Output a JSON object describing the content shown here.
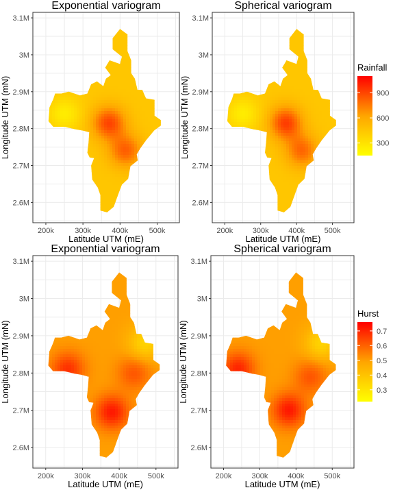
{
  "chart_data": [
    {
      "type": "heatmap",
      "title": "Exponential variogram",
      "xlabel": "Latitude UTM (mE)",
      "ylabel": "Longitude UTM (mN)",
      "x_ticks": [
        "200k",
        "300k",
        "400k",
        "500k"
      ],
      "y_ticks": [
        "2.6M",
        "2.7M",
        "2.8M",
        "2.9M",
        "3M",
        "3.1M"
      ],
      "xlim": [
        165000,
        560000
      ],
      "ylim": [
        2545000,
        3115000
      ],
      "variable": "Rainfall",
      "hotspots": [
        {
          "x": 370000,
          "y": 2815000,
          "value": 900
        },
        {
          "x": 415000,
          "y": 2740000,
          "value": 820
        }
      ],
      "base_value": 450,
      "low_spots": [
        {
          "x": 250000,
          "y": 2840000,
          "value": 250
        }
      ]
    },
    {
      "type": "heatmap",
      "title": "Spherical variogram",
      "xlabel": "Latitude UTM (mE)",
      "ylabel": "Longitude UTM (mN)",
      "x_ticks": [
        "200k",
        "300k",
        "400k",
        "500k"
      ],
      "y_ticks": [
        "2.6M",
        "2.7M",
        "2.8M",
        "2.9M",
        "3M",
        "3.1M"
      ],
      "xlim": [
        165000,
        560000
      ],
      "ylim": [
        2545000,
        3115000
      ],
      "variable": "Rainfall",
      "hotspots": [
        {
          "x": 370000,
          "y": 2815000,
          "value": 920
        },
        {
          "x": 415000,
          "y": 2740000,
          "value": 800
        }
      ],
      "base_value": 450,
      "low_spots": [
        {
          "x": 250000,
          "y": 2840000,
          "value": 250
        }
      ]
    },
    {
      "type": "heatmap",
      "title": "Exponential variogram",
      "xlabel": "Latitude UTM (mE)",
      "ylabel": "Longitude UTM (mN)",
      "x_ticks": [
        "200k",
        "300k",
        "400k",
        "500k"
      ],
      "y_ticks": [
        "2.6M",
        "2.7M",
        "2.8M",
        "2.9M",
        "3M",
        "3.1M"
      ],
      "xlim": [
        165000,
        560000
      ],
      "ylim": [
        2545000,
        3115000
      ],
      "variable": "Hurst",
      "hotspots": [
        {
          "x": 380000,
          "y": 2695000,
          "value": 0.72
        },
        {
          "x": 260000,
          "y": 2810000,
          "value": 0.68
        },
        {
          "x": 440000,
          "y": 2800000,
          "value": 0.62
        }
      ],
      "base_value": 0.5,
      "low_spots": [
        {
          "x": 470000,
          "y": 2880000,
          "value": 0.35
        }
      ]
    },
    {
      "type": "heatmap",
      "title": "Spherical variogram",
      "xlabel": "Latitude UTM (mE)",
      "ylabel": "Longitude UTM (mN)",
      "x_ticks": [
        "200k",
        "300k",
        "400k",
        "500k"
      ],
      "y_ticks": [
        "2.6M",
        "2.7M",
        "2.8M",
        "2.9M",
        "3M",
        "3.1M"
      ],
      "xlim": [
        165000,
        560000
      ],
      "ylim": [
        2545000,
        3115000
      ],
      "variable": "Hurst",
      "hotspots": [
        {
          "x": 380000,
          "y": 2700000,
          "value": 0.72
        },
        {
          "x": 240000,
          "y": 2810000,
          "value": 0.7
        },
        {
          "x": 440000,
          "y": 2790000,
          "value": 0.62
        }
      ],
      "base_value": 0.5,
      "low_spots": [
        {
          "x": 470000,
          "y": 2880000,
          "value": 0.35
        }
      ]
    }
  ],
  "legends": [
    {
      "title": "Rainfall",
      "ticks": [
        "900",
        "600",
        "300"
      ],
      "tick_values": [
        900,
        600,
        300
      ],
      "range": [
        150,
        1100
      ]
    },
    {
      "title": "Hurst",
      "ticks": [
        "0.7",
        "0.6",
        "0.5",
        "0.4",
        "0.3"
      ],
      "tick_values": [
        0.7,
        0.6,
        0.5,
        0.4,
        0.3
      ],
      "range": [
        0.22,
        0.76
      ]
    }
  ],
  "colors": {
    "low": "#ffff00",
    "mid": "#ffa500",
    "high": "#ff0000",
    "grid": "#ebebeb",
    "panel_border": "#333333"
  }
}
